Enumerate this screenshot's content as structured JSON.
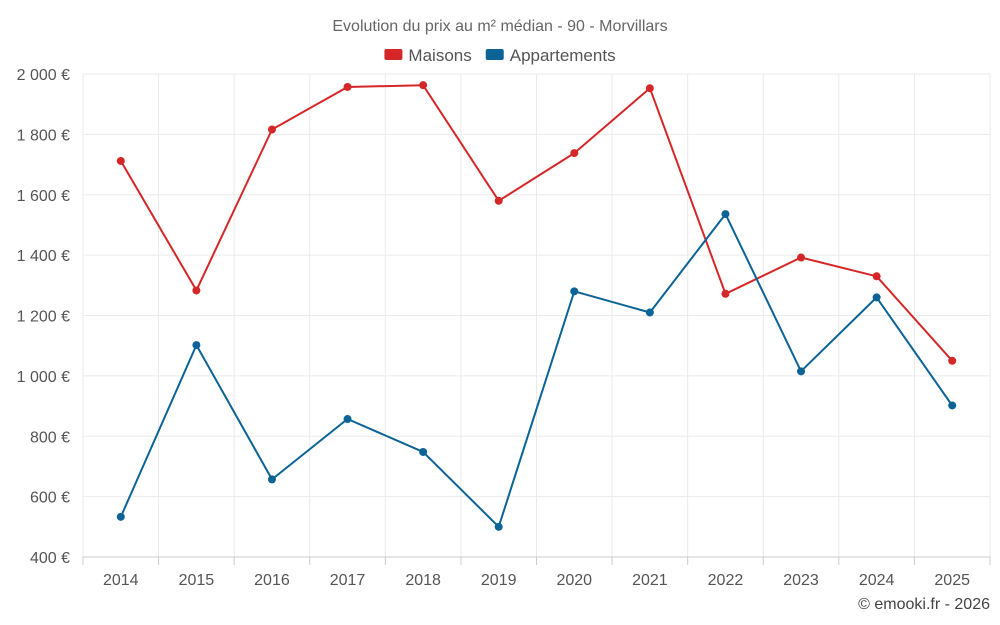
{
  "chart_data": {
    "type": "line",
    "title": "Evolution du prix au m² médian - 90 - Morvillars",
    "categories": [
      "2014",
      "2015",
      "2016",
      "2017",
      "2018",
      "2019",
      "2020",
      "2021",
      "2022",
      "2023",
      "2024",
      "2025"
    ],
    "series": [
      {
        "name": "Maisons",
        "color": "#d62728",
        "values": [
          1712,
          1283,
          1816,
          1957,
          1963,
          1580,
          1738,
          1953,
          1272,
          1392,
          1330,
          1050
        ]
      },
      {
        "name": "Appartements",
        "color": "#0b6396",
        "values": [
          533,
          1102,
          657,
          857,
          748,
          500,
          1280,
          1210,
          1536,
          1015,
          1260,
          902
        ]
      }
    ],
    "ylim": [
      400,
      2000
    ],
    "yticks": [
      400,
      600,
      800,
      1000,
      1200,
      1400,
      1600,
      1800,
      2000
    ],
    "ytick_labels": [
      "400 €",
      "600 €",
      "800 €",
      "1 000 €",
      "1 200 €",
      "1 400 €",
      "1 600 €",
      "1 800 €",
      "2 000 €"
    ],
    "xlabel": "",
    "ylabel": "",
    "grid": true,
    "legend_position": "top-center",
    "credit": "© emooki.fr - 2026"
  }
}
